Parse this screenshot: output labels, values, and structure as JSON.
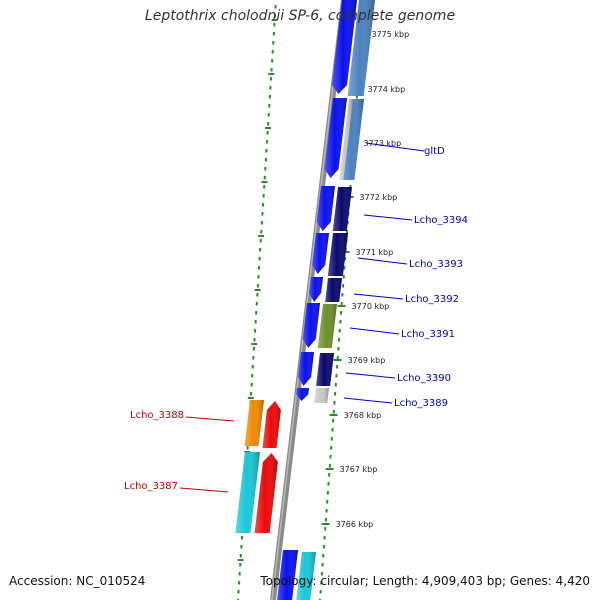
{
  "title": "Leptothrix cholodnii SP-6, complete genome",
  "accession_text": "Accession: NC_010524",
  "summary_text": "Topology: circular; Length: 4,909,403 bp; Genes: 4,420",
  "colors": {
    "background": "#ffffff",
    "backbone": "#8a8a8a",
    "ruler": "#2e8b2e",
    "forward_label": "#0000cc",
    "reverse_label": "#cc0000",
    "cds_blue": "#0a10f0",
    "cds_navy": "#08086e",
    "cds_steel": "#4a82c0",
    "cds_grey": "#c8c8c8",
    "cds_olive": "#6f8f2a",
    "cds_orange": "#f08a00",
    "cds_red": "#ee0808",
    "cds_cyan": "#18c8d8"
  },
  "scale_labels": [
    "3775 kbp",
    "3774 kbp",
    "3773 kbp",
    "3772 kbp",
    "3771 kbp",
    "3770 kbp",
    "3769 kbp",
    "3768 kbp",
    "3767 kbp",
    "3766 kbp"
  ],
  "gene_labels": [
    "gltD",
    "Lcho_3394",
    "Lcho_3393",
    "Lcho_3392",
    "Lcho_3391",
    "Lcho_3390",
    "Lcho_3389",
    "Lcho_3388",
    "Lcho_3387"
  ]
}
